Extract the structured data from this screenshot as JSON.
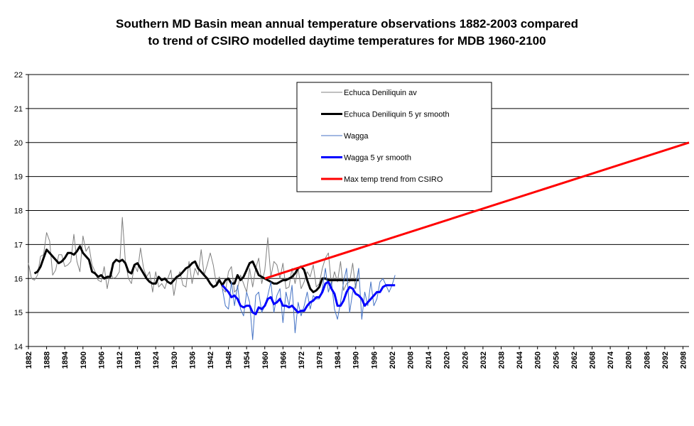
{
  "chart_data": {
    "type": "line",
    "title_line1": "Southern MD Basin mean annual temperature observations 1882-2003 compared",
    "title_line2": "to trend of CSIRO modelled daytime temperatures for MDB 1960-2100",
    "xlabel": "",
    "ylabel": "",
    "xlim": [
      1882,
      2100
    ],
    "ylim": [
      14,
      22
    ],
    "ytick_step": 1,
    "xtick_start": 1882,
    "xtick_step": 6,
    "xtick_end": 2098,
    "grid": "horizontal",
    "legend_position": "top-center",
    "series": [
      {
        "name": "Echuca Deniliquin av",
        "color": "#808080",
        "x": [
          1882,
          1883,
          1884,
          1885,
          1886,
          1887,
          1888,
          1889,
          1890,
          1891,
          1892,
          1893,
          1894,
          1895,
          1896,
          1897,
          1898,
          1899,
          1900,
          1901,
          1902,
          1903,
          1904,
          1905,
          1906,
          1907,
          1908,
          1909,
          1910,
          1911,
          1912,
          1913,
          1914,
          1915,
          1916,
          1917,
          1918,
          1919,
          1920,
          1921,
          1922,
          1923,
          1924,
          1925,
          1926,
          1927,
          1928,
          1929,
          1930,
          1931,
          1932,
          1933,
          1934,
          1935,
          1936,
          1937,
          1938,
          1939,
          1940,
          1941,
          1942,
          1943,
          1944,
          1945,
          1946,
          1947,
          1948,
          1949,
          1950,
          1951,
          1952,
          1953,
          1954,
          1955,
          1956,
          1957,
          1958,
          1959,
          1960,
          1961,
          1962,
          1963,
          1964,
          1965,
          1966,
          1967,
          1968,
          1969,
          1970,
          1971,
          1972,
          1973,
          1974,
          1975,
          1976,
          1977,
          1978,
          1979,
          1980,
          1981,
          1982,
          1983,
          1984,
          1985,
          1986,
          1987,
          1988,
          1989,
          1990,
          1991
        ],
        "y": [
          16.45,
          16.0,
          15.95,
          16.1,
          16.65,
          16.7,
          17.35,
          17.1,
          16.1,
          16.25,
          16.7,
          16.7,
          16.35,
          16.4,
          16.5,
          17.3,
          16.5,
          16.2,
          17.25,
          16.8,
          16.95,
          16.4,
          16.2,
          15.95,
          15.9,
          16.35,
          15.7,
          16.2,
          16.0,
          16.05,
          16.2,
          17.8,
          16.5,
          16.0,
          15.85,
          16.4,
          16.2,
          16.9,
          16.3,
          16.05,
          16.2,
          15.6,
          16.2,
          15.75,
          15.85,
          15.7,
          16.0,
          16.25,
          15.5,
          16.0,
          16.2,
          15.8,
          15.75,
          16.5,
          15.85,
          16.3,
          16.1,
          16.85,
          16.1,
          16.4,
          16.75,
          16.4,
          15.85,
          16.05,
          15.7,
          15.6,
          16.2,
          16.35,
          15.6,
          15.7,
          16.1,
          15.85,
          15.6,
          16.3,
          15.75,
          16.3,
          16.6,
          15.85,
          16.25,
          17.2,
          16.05,
          16.5,
          16.4,
          16.0,
          16.45,
          15.7,
          15.75,
          16.3,
          15.85,
          16.3,
          15.7,
          15.9,
          16.2,
          16.05,
          16.4,
          15.75,
          15.85,
          16.3,
          16.6,
          16.75,
          15.8,
          16.2,
          15.9,
          16.5,
          15.65,
          15.85,
          15.9,
          16.45,
          15.7,
          16.3
        ]
      },
      {
        "name": "Echuca Deniliquin 5 yr smooth",
        "color": "#000000",
        "x": [
          1884,
          1885,
          1886,
          1887,
          1888,
          1889,
          1890,
          1891,
          1892,
          1893,
          1894,
          1895,
          1896,
          1897,
          1898,
          1899,
          1900,
          1901,
          1902,
          1903,
          1904,
          1905,
          1906,
          1907,
          1908,
          1909,
          1910,
          1911,
          1912,
          1913,
          1914,
          1915,
          1916,
          1917,
          1918,
          1919,
          1920,
          1921,
          1922,
          1923,
          1924,
          1925,
          1926,
          1927,
          1928,
          1929,
          1930,
          1931,
          1932,
          1933,
          1934,
          1935,
          1936,
          1937,
          1938,
          1939,
          1940,
          1941,
          1942,
          1943,
          1944,
          1945,
          1946,
          1947,
          1948,
          1949,
          1950,
          1951,
          1952,
          1953,
          1954,
          1955,
          1956,
          1957,
          1958,
          1959,
          1960,
          1961,
          1962,
          1963,
          1964,
          1965,
          1966,
          1967,
          1968,
          1969,
          1970,
          1971,
          1972,
          1973,
          1974,
          1975,
          1976,
          1977,
          1978,
          1979,
          1980,
          1981,
          1982,
          1983,
          1984,
          1985,
          1986,
          1987,
          1988,
          1989,
          1990,
          1991
        ],
        "y": [
          16.15,
          16.2,
          16.35,
          16.6,
          16.85,
          16.75,
          16.65,
          16.55,
          16.45,
          16.5,
          16.6,
          16.75,
          16.75,
          16.7,
          16.8,
          16.95,
          16.75,
          16.65,
          16.55,
          16.2,
          16.15,
          16.05,
          16.1,
          16.0,
          16.05,
          16.05,
          16.45,
          16.55,
          16.5,
          16.55,
          16.45,
          16.2,
          16.15,
          16.4,
          16.45,
          16.3,
          16.15,
          16.0,
          15.9,
          15.85,
          15.85,
          16.05,
          15.95,
          16.0,
          15.9,
          15.85,
          15.95,
          16.05,
          16.1,
          16.2,
          16.3,
          16.35,
          16.45,
          16.5,
          16.3,
          16.2,
          16.1,
          16.0,
          15.85,
          15.75,
          15.8,
          15.95,
          15.8,
          15.95,
          16.0,
          15.85,
          15.85,
          16.1,
          15.95,
          16.05,
          16.25,
          16.45,
          16.5,
          16.3,
          16.1,
          16.05,
          16.0,
          15.95,
          15.9,
          15.85,
          15.85,
          15.9,
          15.95,
          15.95,
          16.0,
          16.05,
          16.15,
          16.3,
          16.35,
          16.25,
          15.95,
          15.7,
          15.6,
          15.65,
          15.75,
          16.0,
          16.0,
          15.95,
          15.95,
          15.95,
          15.95,
          15.95,
          15.95,
          15.95,
          15.95,
          15.95,
          15.95,
          15.95
        ]
      },
      {
        "name": "Wagga",
        "color": "#4472c4",
        "x": [
          1946,
          1947,
          1948,
          1949,
          1950,
          1951,
          1952,
          1953,
          1954,
          1955,
          1956,
          1957,
          1958,
          1959,
          1960,
          1961,
          1962,
          1963,
          1964,
          1965,
          1966,
          1967,
          1968,
          1969,
          1970,
          1971,
          1972,
          1973,
          1974,
          1975,
          1976,
          1977,
          1978,
          1979,
          1980,
          1981,
          1982,
          1983,
          1984,
          1985,
          1986,
          1987,
          1988,
          1989,
          1990,
          1991,
          1992,
          1993,
          1994,
          1995,
          1996,
          1997,
          1998,
          1999,
          2000,
          2001,
          2002,
          2003
        ],
        "y": [
          15.7,
          15.2,
          15.1,
          15.9,
          15.2,
          15.8,
          15.1,
          14.9,
          15.6,
          15.3,
          14.2,
          15.5,
          15.6,
          15.0,
          15.2,
          15.5,
          15.9,
          15.0,
          15.5,
          15.7,
          14.7,
          15.6,
          15.2,
          15.8,
          14.4,
          15.3,
          14.9,
          15.2,
          15.6,
          15.1,
          15.5,
          15.4,
          15.4,
          15.7,
          16.3,
          15.6,
          15.9,
          15.1,
          14.8,
          15.3,
          15.9,
          16.3,
          15.0,
          15.6,
          15.8,
          16.3,
          14.8,
          15.6,
          15.2,
          15.9,
          15.2,
          15.4,
          15.9,
          16.0,
          15.8,
          15.6,
          15.8,
          16.1
        ]
      },
      {
        "name": "Wagga 5 yr smooth",
        "color": "#0000ff",
        "x": [
          1946,
          1947,
          1948,
          1949,
          1950,
          1951,
          1952,
          1953,
          1954,
          1955,
          1956,
          1957,
          1958,
          1959,
          1960,
          1961,
          1962,
          1963,
          1964,
          1965,
          1966,
          1967,
          1968,
          1969,
          1970,
          1971,
          1972,
          1973,
          1974,
          1975,
          1976,
          1977,
          1978,
          1979,
          1980,
          1981,
          1982,
          1983,
          1984,
          1985,
          1986,
          1987,
          1988,
          1989,
          1990,
          1991,
          1992,
          1993,
          1994,
          1995,
          1996,
          1997,
          1998,
          1999,
          2000,
          2001,
          2002,
          2003
        ],
        "y": [
          15.8,
          15.7,
          15.6,
          15.45,
          15.5,
          15.4,
          15.2,
          15.15,
          15.2,
          15.2,
          15.0,
          14.95,
          15.15,
          15.1,
          15.2,
          15.4,
          15.45,
          15.25,
          15.3,
          15.4,
          15.2,
          15.2,
          15.15,
          15.2,
          15.1,
          15.0,
          15.05,
          15.05,
          15.2,
          15.3,
          15.35,
          15.45,
          15.45,
          15.6,
          15.85,
          15.9,
          15.7,
          15.55,
          15.2,
          15.2,
          15.35,
          15.6,
          15.75,
          15.7,
          15.55,
          15.5,
          15.4,
          15.2,
          15.3,
          15.4,
          15.5,
          15.6,
          15.6,
          15.75,
          15.8,
          15.8,
          15.8,
          15.8
        ]
      },
      {
        "name": "Max temp trend from CSIRO",
        "color": "#ff0000",
        "x": [
          1960,
          2100
        ],
        "y": [
          16.0,
          20.0
        ]
      }
    ]
  }
}
